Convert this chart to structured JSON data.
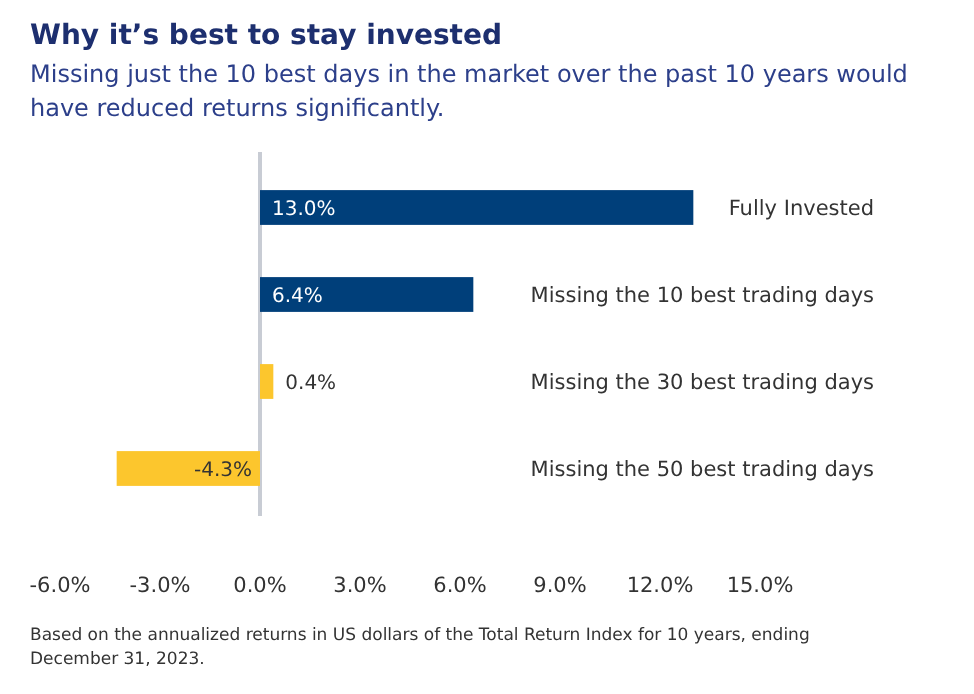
{
  "chart_data": {
    "type": "bar",
    "orientation": "horizontal",
    "title": "Why it’s best to stay invested",
    "subtitle": "Missing just the 10 best days in the market over the past 10 years would have reduced returns significantly.",
    "categories": [
      "Fully Invested",
      "Missing the 10 best trading days",
      "Missing the 30 best trading days",
      "Missing the 50 best trading days"
    ],
    "values": [
      13.0,
      6.4,
      0.4,
      -4.3
    ],
    "value_labels": [
      "13.0%",
      "6.4%",
      "0.4%",
      "-4.3%"
    ],
    "colors": [
      "#003f7a",
      "#003f7a",
      "#fcc62d",
      "#fcc62d"
    ],
    "xlim": [
      -6,
      15
    ],
    "xticks": [
      {
        "value": -6,
        "label": "-6.0%"
      },
      {
        "value": -3,
        "label": "-3.0%"
      },
      {
        "value": 0,
        "label": "0.0%"
      },
      {
        "value": 3,
        "label": "3.0%"
      },
      {
        "value": 6,
        "label": "6.0%"
      },
      {
        "value": 9,
        "label": "9.0%"
      },
      {
        "value": 12,
        "label": "12.0%"
      },
      {
        "value": 15,
        "label": "15.0%"
      }
    ],
    "annotations": [
      "Based on the annualized returns in US dollars of the Total Return Index for 10 years, ending December 31, 2023."
    ]
  }
}
